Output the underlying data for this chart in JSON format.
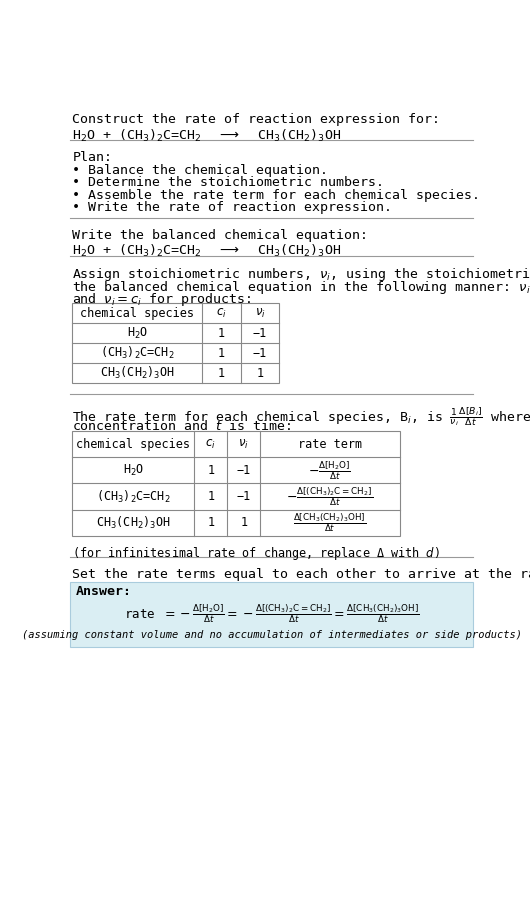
{
  "bg_color": "#ffffff",
  "font_family": "monospace",
  "title_text": "Construct the rate of reaction expression for:",
  "plan_header": "Plan:",
  "plan_items": [
    "• Balance the chemical equation.",
    "• Determine the stoichiometric numbers.",
    "• Assemble the rate term for each chemical species.",
    "• Write the rate of reaction expression."
  ],
  "balanced_header": "Write the balanced chemical equation:",
  "assign_text1": "Assign stoichiometric numbers, $\\nu_i$, using the stoichiometric coefficients, $c_i$, from",
  "assign_text2": "the balanced chemical equation in the following manner: $\\nu_i = -c_i$ for reactants",
  "assign_text3": "and $\\nu_i = c_i$ for products:",
  "table1_headers": [
    "chemical species",
    "$c_i$",
    "$\\nu_i$"
  ],
  "table1_rows": [
    [
      "H$_2$O",
      "1",
      "−1"
    ],
    [
      "(CH$_3$)$_2$C=CH$_2$",
      "1",
      "−1"
    ],
    [
      "CH$_3$(CH$_2$)$_3$OH",
      "1",
      "1"
    ]
  ],
  "rate_text1": "The rate term for each chemical species, B$_i$, is $\\frac{1}{\\nu_i}\\frac{\\Delta[B_i]}{\\Delta t}$ where [B$_i$] is the amount",
  "rate_text2": "concentration and $t$ is time:",
  "table2_headers": [
    "chemical species",
    "$c_i$",
    "$\\nu_i$",
    "rate term"
  ],
  "table2_rows": [
    [
      "H$_2$O",
      "1",
      "−1"
    ],
    [
      "(CH$_3$)$_2$C=CH$_2$",
      "1",
      "−1"
    ],
    [
      "CH$_3$(CH$_2$)$_3$OH",
      "1",
      "1"
    ]
  ],
  "rate_terms": [
    "$-\\frac{\\Delta[H_2O]}{\\Delta t}$",
    "$-\\frac{\\Delta[(CH_3)_2C=CH_2]}{\\Delta t}$",
    "$\\frac{\\Delta[CH_3(CH_2)_3OH]}{\\Delta t}$"
  ],
  "infinitesimal_note": "(for infinitesimal rate of change, replace Δ with $d$)",
  "set_text": "Set the rate terms equal to each other to arrive at the rate expression:",
  "answer_label": "Answer:",
  "answer_box_color": "#daeef3",
  "answer_note": "(assuming constant volume and no accumulation of intermediates or side products)"
}
